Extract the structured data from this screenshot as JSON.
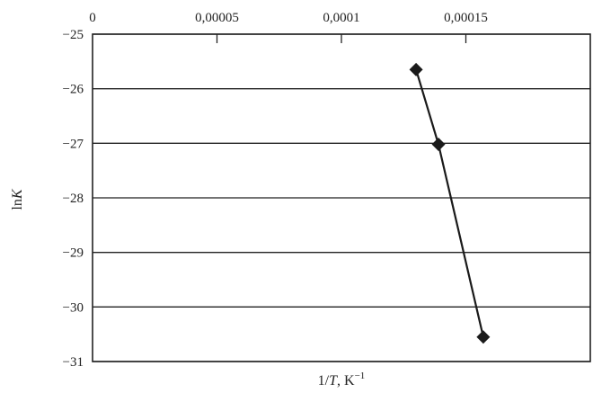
{
  "chart_data": {
    "type": "line",
    "xlabel_parts": [
      "1/",
      "T",
      ", K",
      "−1"
    ],
    "ylabel_parts": [
      "ln",
      "K"
    ],
    "x_tick_labels": [
      "0",
      "0,00005",
      "0,0001",
      "0,00015"
    ],
    "x_ticks": [
      0,
      5e-05,
      0.0001,
      0.00015
    ],
    "y_tick_labels": [
      "−25",
      "−26",
      "−27",
      "−28",
      "−29",
      "−30",
      "−31"
    ],
    "y_ticks": [
      -25,
      -26,
      -27,
      -28,
      -29,
      -30,
      -31
    ],
    "xlim": [
      0,
      0.0002
    ],
    "ylim": [
      -31,
      -25
    ],
    "x_axis_position": "top",
    "grid": "horizontal",
    "series": [
      {
        "x": [
          0.00013,
          0.000139,
          0.000157
        ],
        "y": [
          -25.65,
          -27.02,
          -30.55
        ],
        "marker": "diamond",
        "color": "#1a1a1a"
      }
    ]
  }
}
